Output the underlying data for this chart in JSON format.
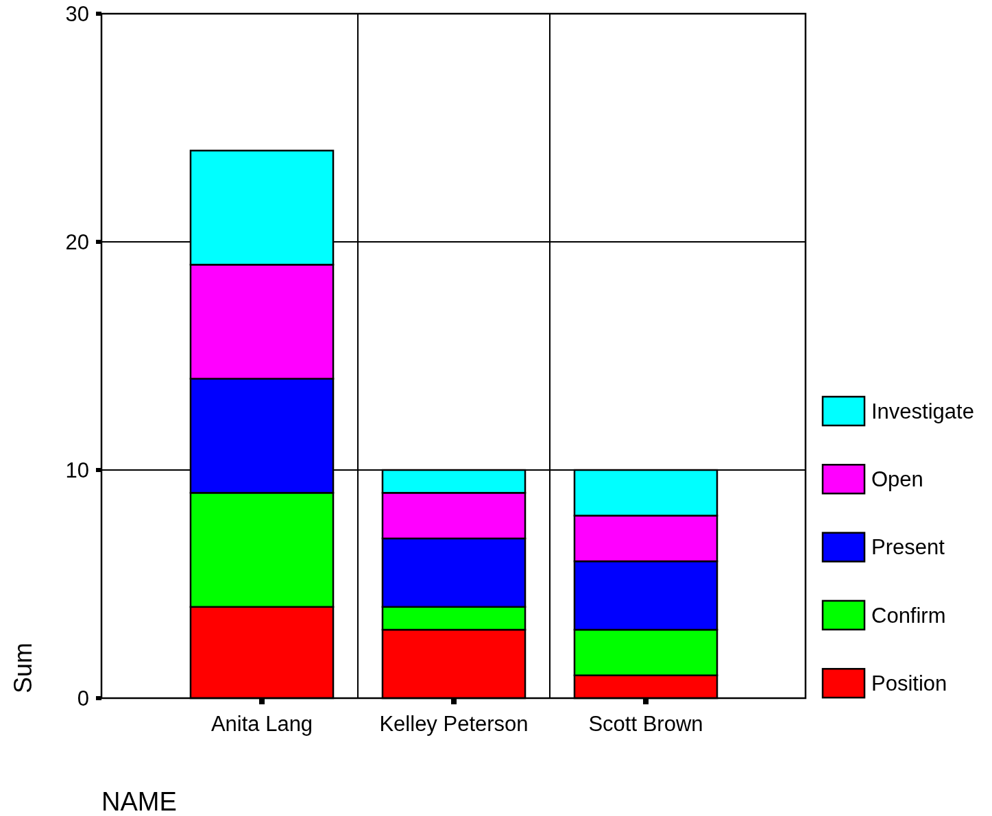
{
  "chart_data": {
    "type": "bar",
    "stacked": true,
    "xlabel": "NAME",
    "ylabel": "Sum",
    "categories": [
      "Anita Lang",
      "Kelley Peterson",
      "Scott Brown"
    ],
    "series": [
      {
        "name": "Position",
        "color": "#ff0000",
        "values": [
          4,
          3,
          1
        ]
      },
      {
        "name": "Confirm",
        "color": "#00ff00",
        "values": [
          5,
          1,
          2
        ]
      },
      {
        "name": "Present",
        "color": "#0000ff",
        "values": [
          5,
          3,
          3
        ]
      },
      {
        "name": "Open",
        "color": "#ff00ff",
        "values": [
          5,
          2,
          2
        ]
      },
      {
        "name": "Investigate",
        "color": "#00ffff",
        "values": [
          5,
          1,
          2
        ]
      }
    ],
    "ylim": [
      0,
      30
    ],
    "yticks": [
      0,
      10,
      20,
      30
    ],
    "grid": true,
    "legend": "right"
  }
}
